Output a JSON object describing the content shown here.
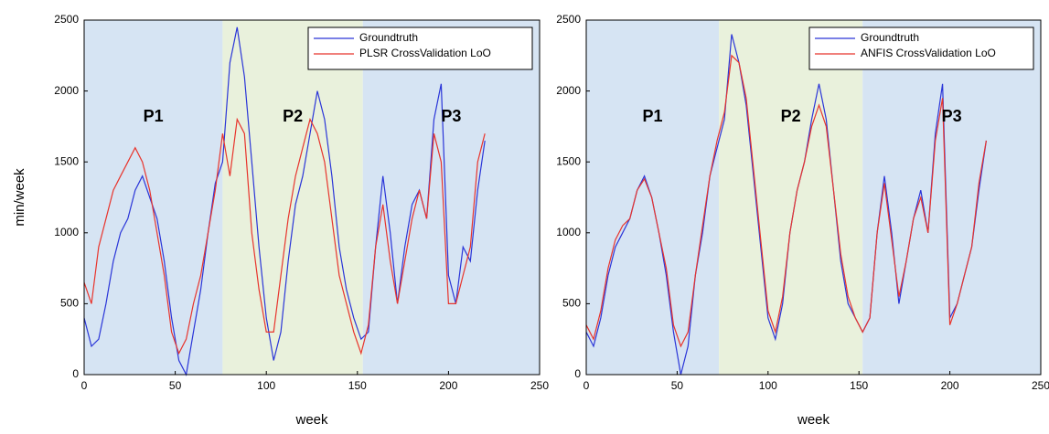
{
  "chart_data": [
    {
      "type": "line",
      "ylabel": "min/week",
      "xlabel": "week",
      "xlim": [
        0,
        250
      ],
      "ylim": [
        0,
        2500
      ],
      "xticks": [
        0,
        50,
        100,
        150,
        200,
        250
      ],
      "yticks": [
        0,
        500,
        1000,
        1500,
        2000,
        2500
      ],
      "legend": "upper right",
      "regions": [
        {
          "label": "P1",
          "start": 0,
          "end": 76,
          "color": "#d6e4f3"
        },
        {
          "label": "P2",
          "start": 76,
          "end": 153,
          "color": "#e9f1dc"
        },
        {
          "label": "P3",
          "start": 153,
          "end": 250,
          "color": "#d6e4f3"
        }
      ],
      "x": [
        0,
        4,
        8,
        12,
        16,
        20,
        24,
        28,
        32,
        36,
        40,
        44,
        48,
        52,
        56,
        60,
        64,
        68,
        72,
        76,
        80,
        84,
        88,
        92,
        96,
        100,
        104,
        108,
        112,
        116,
        120,
        124,
        128,
        132,
        136,
        140,
        144,
        148,
        152,
        156,
        160,
        164,
        168,
        172,
        176,
        180,
        184,
        188,
        192,
        196,
        200,
        204,
        208,
        212,
        216,
        220
      ],
      "series": [
        {
          "name": "Groundtruth",
          "color": "#2a35d8",
          "values": [
            400,
            200,
            250,
            500,
            800,
            1000,
            1100,
            1300,
            1400,
            1250,
            1100,
            800,
            400,
            100,
            0,
            300,
            600,
            1000,
            1350,
            1500,
            2200,
            2450,
            2100,
            1500,
            900,
            400,
            100,
            300,
            800,
            1200,
            1400,
            1700,
            2000,
            1800,
            1400,
            900,
            600,
            400,
            250,
            300,
            900,
            1400,
            1000,
            500,
            900,
            1200,
            1300,
            1100,
            1800,
            2050,
            700,
            500,
            900,
            800,
            1300,
            1650
          ]
        },
        {
          "name": "PLSR CrossValidation LoO",
          "color": "#e8342c",
          "values": [
            650,
            500,
            900,
            1100,
            1300,
            1400,
            1500,
            1600,
            1500,
            1300,
            1000,
            700,
            300,
            150,
            250,
            500,
            700,
            1000,
            1300,
            1700,
            1400,
            1800,
            1700,
            1000,
            600,
            300,
            300,
            700,
            1100,
            1400,
            1600,
            1800,
            1700,
            1500,
            1100,
            700,
            500,
            300,
            150,
            350,
            900,
            1200,
            800,
            500,
            800,
            1100,
            1300,
            1100,
            1700,
            1500,
            500,
            500,
            700,
            900,
            1500,
            1700
          ]
        }
      ]
    },
    {
      "type": "line",
      "xlabel": "week",
      "xlim": [
        0,
        250
      ],
      "ylim": [
        0,
        2500
      ],
      "xticks": [
        0,
        50,
        100,
        150,
        200,
        250
      ],
      "yticks": [
        0,
        500,
        1000,
        1500,
        2000,
        2500
      ],
      "legend": "upper right",
      "regions": [
        {
          "label": "P1",
          "start": 0,
          "end": 73,
          "color": "#d6e4f3"
        },
        {
          "label": "P2",
          "start": 73,
          "end": 152,
          "color": "#e9f1dc"
        },
        {
          "label": "P3",
          "start": 152,
          "end": 250,
          "color": "#d6e4f3"
        }
      ],
      "x": [
        0,
        4,
        8,
        12,
        16,
        20,
        24,
        28,
        32,
        36,
        40,
        44,
        48,
        52,
        56,
        60,
        64,
        68,
        72,
        76,
        80,
        84,
        88,
        92,
        96,
        100,
        104,
        108,
        112,
        116,
        120,
        124,
        128,
        132,
        136,
        140,
        144,
        148,
        152,
        156,
        160,
        164,
        168,
        172,
        176,
        180,
        184,
        188,
        192,
        196,
        200,
        204,
        208,
        212,
        216,
        220
      ],
      "series": [
        {
          "name": "Groundtruth",
          "color": "#2a35d8",
          "values": [
            300,
            200,
            400,
            700,
            900,
            1000,
            1100,
            1300,
            1400,
            1250,
            1000,
            700,
            300,
            0,
            200,
            700,
            1000,
            1400,
            1600,
            1800,
            2400,
            2200,
            1900,
            1400,
            900,
            400,
            250,
            500,
            1000,
            1300,
            1500,
            1800,
            2050,
            1800,
            1300,
            800,
            500,
            400,
            300,
            400,
            1000,
            1400,
            1000,
            500,
            800,
            1100,
            1300,
            1000,
            1700,
            2050,
            400,
            500,
            700,
            900,
            1300,
            1650
          ]
        },
        {
          "name": "ANFIS CrossValidation LoO",
          "color": "#e8342c",
          "values": [
            350,
            250,
            450,
            750,
            950,
            1050,
            1100,
            1300,
            1380,
            1250,
            1000,
            750,
            350,
            200,
            300,
            700,
            1050,
            1400,
            1650,
            1850,
            2250,
            2200,
            1950,
            1450,
            950,
            450,
            300,
            550,
            1000,
            1300,
            1500,
            1750,
            1900,
            1750,
            1300,
            850,
            550,
            400,
            300,
            400,
            1000,
            1350,
            950,
            550,
            800,
            1100,
            1250,
            1000,
            1650,
            1950,
            350,
            500,
            700,
            900,
            1350,
            1650
          ]
        }
      ]
    }
  ]
}
